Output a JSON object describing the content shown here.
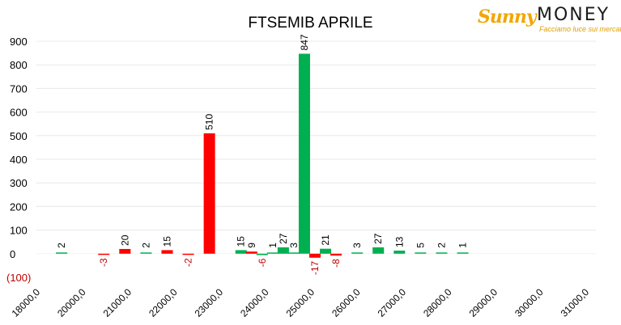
{
  "brand": {
    "name_part1": "Sunny",
    "name_part2": "MONEY",
    "tagline": "Facciamo luce sui mercati"
  },
  "colors": {
    "call": "#00b050",
    "put": "#ff0000",
    "negative_label": "#c00000",
    "grid": "#e8e8e8",
    "text": "#000000"
  },
  "chart_data": {
    "type": "bar",
    "title": "FTSEMIB APRILE",
    "xlabel": "",
    "ylabel": "",
    "ylim": [
      -100,
      900
    ],
    "yticks": [
      {
        "value": 900,
        "label": "900"
      },
      {
        "value": 800,
        "label": "800"
      },
      {
        "value": 700,
        "label": "700"
      },
      {
        "value": 600,
        "label": "600"
      },
      {
        "value": 500,
        "label": "500"
      },
      {
        "value": 400,
        "label": "400"
      },
      {
        "value": 300,
        "label": "300"
      },
      {
        "value": 200,
        "label": "200"
      },
      {
        "value": 100,
        "label": "100"
      },
      {
        "value": 0,
        "label": "0"
      },
      {
        "value": -100,
        "label": "(100)"
      }
    ],
    "xlim": [
      18000,
      31000
    ],
    "xticks": [
      "18000,0",
      "20000,0",
      "21000,0",
      "22000,0",
      "23000,0",
      "24000,0",
      "25000,0",
      "26000,0",
      "27000,0",
      "28000,0",
      "29000,0",
      "30000,0",
      "31000,0"
    ],
    "grid": true,
    "legend": "none",
    "bars": [
      {
        "x": 18500,
        "value": 2,
        "label": "2",
        "color": "call"
      },
      {
        "x": 19500,
        "value": -3,
        "label": "-3",
        "color": "put"
      },
      {
        "x": 20000,
        "value": 20,
        "label": "20",
        "color": "put"
      },
      {
        "x": 20500,
        "value": 2,
        "label": "2",
        "color": "call"
      },
      {
        "x": 21000,
        "value": 15,
        "label": "15",
        "color": "put"
      },
      {
        "x": 21500,
        "value": -2,
        "label": "-2",
        "color": "put"
      },
      {
        "x": 22000,
        "value": 510,
        "label": "510",
        "color": "put"
      },
      {
        "x": 22750,
        "value": 15,
        "label": "15",
        "color": "call"
      },
      {
        "x": 23000,
        "value": 9,
        "label": "9",
        "color": "put"
      },
      {
        "x": 23250,
        "value": -6,
        "label": "-6",
        "color": "call"
      },
      {
        "x": 23500,
        "value": 1,
        "label": "1",
        "color": "call"
      },
      {
        "x": 23750,
        "value": 27,
        "label": "27",
        "color": "call"
      },
      {
        "x": 24000,
        "value": 3,
        "label": "3",
        "color": "call"
      },
      {
        "x": 24250,
        "value": 847,
        "label": "847",
        "color": "call"
      },
      {
        "x": 24500,
        "value": -17,
        "label": "-17",
        "color": "put"
      },
      {
        "x": 24750,
        "value": 21,
        "label": "21",
        "color": "call"
      },
      {
        "x": 25000,
        "value": -8,
        "label": "-8",
        "color": "put"
      },
      {
        "x": 25500,
        "value": 3,
        "label": "3",
        "color": "call"
      },
      {
        "x": 26000,
        "value": 27,
        "label": "27",
        "color": "call"
      },
      {
        "x": 26500,
        "value": 13,
        "label": "13",
        "color": "call"
      },
      {
        "x": 27000,
        "value": 5,
        "label": "5",
        "color": "call"
      },
      {
        "x": 27500,
        "value": 2,
        "label": "2",
        "color": "call"
      },
      {
        "x": 28000,
        "value": 1,
        "label": "1",
        "color": "call"
      }
    ]
  }
}
